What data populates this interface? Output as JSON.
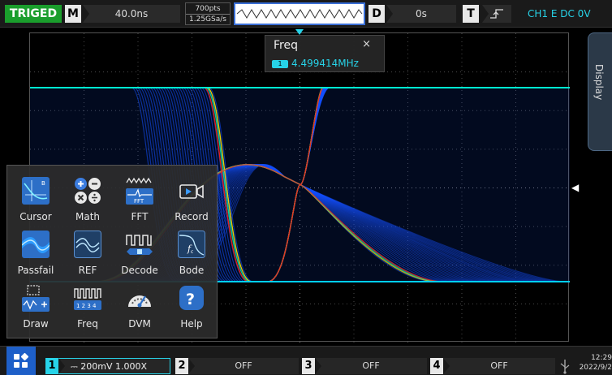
{
  "top_bar": {
    "trigger_status": "TRIGED",
    "timebase_key": "M",
    "timebase": "40.0ns",
    "memory_depth": "700pts",
    "sample_rate": "1.25GSa/s",
    "delay_key": "D",
    "delay": "0s",
    "trigger_key": "T",
    "trigger_slope_icon": "rising-edge-icon",
    "trigger_info": "CH1 E DC 0V"
  },
  "freq_box": {
    "title": "Freq",
    "close_label": "×",
    "channel": "1",
    "value": "4.499414MHz"
  },
  "display_tab": {
    "label": "Display"
  },
  "app_menu": {
    "items": [
      {
        "label": "Cursor",
        "icon": "cursor-icon"
      },
      {
        "label": "Math",
        "icon": "math-icon"
      },
      {
        "label": "FFT",
        "icon": "fft-icon",
        "icon_text": "FFT"
      },
      {
        "label": "Record",
        "icon": "record-icon"
      },
      {
        "label": "Passfail",
        "icon": "passfail-icon"
      },
      {
        "label": "REF",
        "icon": "ref-icon"
      },
      {
        "label": "Decode",
        "icon": "decode-icon"
      },
      {
        "label": "Bode",
        "icon": "bode-icon"
      },
      {
        "label": "Draw",
        "icon": "draw-icon"
      },
      {
        "label": "Freq",
        "icon": "freq-icon",
        "icon_text": "1 2 3 4"
      },
      {
        "label": "DVM",
        "icon": "dvm-icon"
      },
      {
        "label": "Help",
        "icon": "help-icon",
        "icon_text": "?"
      }
    ]
  },
  "bottom_bar": {
    "ch1": {
      "key": "1",
      "info": "⎓ 200mV 1.000X"
    },
    "ch2": {
      "key": "2",
      "info": "OFF"
    },
    "ch3": {
      "key": "3",
      "info": "OFF"
    },
    "ch4": {
      "key": "4",
      "info": "OFF"
    },
    "time": "12:29",
    "date": "2022/9/2"
  },
  "colors": {
    "trigger_green": "#1a9e2c",
    "channel1_cyan": "#27d3e8",
    "accent_blue": "#1e5fc8",
    "waveform_blue": "#1450ff",
    "waveform_hot": "#ff2010"
  }
}
